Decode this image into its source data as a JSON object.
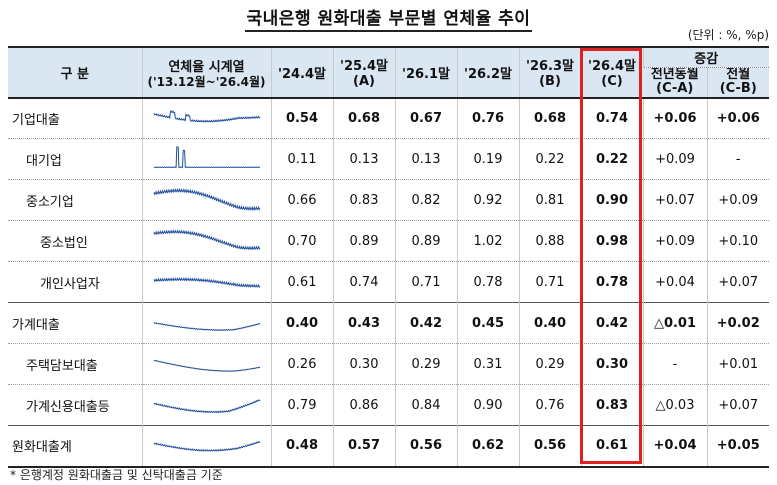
{
  "title": "국내은행 원화대출 부문별 연체율 추이",
  "unit": "(단위 : %, %p)",
  "headers": {
    "category": "구  분",
    "series_line1": "연체율 시계열",
    "series_line2": "('13.12월~'26.4월)",
    "col1": "'24.4말",
    "col2_line1": "'25.4말",
    "col2_line2": "(A)",
    "col3": "'26.1말",
    "col4": "'26.2말",
    "col5_line1": "'26.3말",
    "col5_line2": "(B)",
    "col6_line1": "'26.4말",
    "col6_line2": "(C)",
    "change_group": "증감",
    "change_yoy_line1": "전년동월",
    "change_yoy_line2": "(C-A)",
    "change_mom_line1": "전월",
    "change_mom_line2": "(C-B)"
  },
  "rows": [
    {
      "label": "기업대출",
      "v1": "0.54",
      "v2": "0.68",
      "v3": "0.67",
      "v4": "0.76",
      "v5": "0.68",
      "v6": "0.74",
      "d1": "+0.06",
      "d2": "+0.06"
    },
    {
      "label": "대기업",
      "v1": "0.11",
      "v2": "0.13",
      "v3": "0.13",
      "v4": "0.19",
      "v5": "0.22",
      "v6": "0.22",
      "d1": "+0.09",
      "d2": "-"
    },
    {
      "label": "중소기업",
      "v1": "0.66",
      "v2": "0.83",
      "v3": "0.82",
      "v4": "0.92",
      "v5": "0.81",
      "v6": "0.90",
      "d1": "+0.07",
      "d2": "+0.09"
    },
    {
      "label": "중소법인",
      "v1": "0.70",
      "v2": "0.89",
      "v3": "0.89",
      "v4": "1.02",
      "v5": "0.88",
      "v6": "0.98",
      "d1": "+0.09",
      "d2": "+0.10"
    },
    {
      "label": "개인사업자",
      "v1": "0.61",
      "v2": "0.74",
      "v3": "0.71",
      "v4": "0.78",
      "v5": "0.71",
      "v6": "0.78",
      "d1": "+0.04",
      "d2": "+0.07"
    },
    {
      "label": "가계대출",
      "v1": "0.40",
      "v2": "0.43",
      "v3": "0.42",
      "v4": "0.45",
      "v5": "0.40",
      "v6": "0.42",
      "d1": "△0.01",
      "d2": "+0.02"
    },
    {
      "label": "주택담보대출",
      "v1": "0.26",
      "v2": "0.30",
      "v3": "0.29",
      "v4": "0.31",
      "v5": "0.29",
      "v6": "0.30",
      "d1": "-",
      "d2": "+0.01"
    },
    {
      "label": "가계신용대출등",
      "v1": "0.79",
      "v2": "0.86",
      "v3": "0.84",
      "v4": "0.90",
      "v5": "0.76",
      "v6": "0.83",
      "d1": "△0.03",
      "d2": "+0.07"
    },
    {
      "label": "원화대출계",
      "v1": "0.48",
      "v2": "0.57",
      "v3": "0.56",
      "v4": "0.62",
      "v5": "0.56",
      "v6": "0.61",
      "d1": "+0.04",
      "d2": "+0.05"
    }
  ],
  "footnote": "* 은행계정 원화대출금 및 신탁대출금 기준",
  "colors": {
    "header_bg": "#dbe6f3",
    "highlight": "#e02020",
    "sparkline": "#1f4e9e"
  }
}
